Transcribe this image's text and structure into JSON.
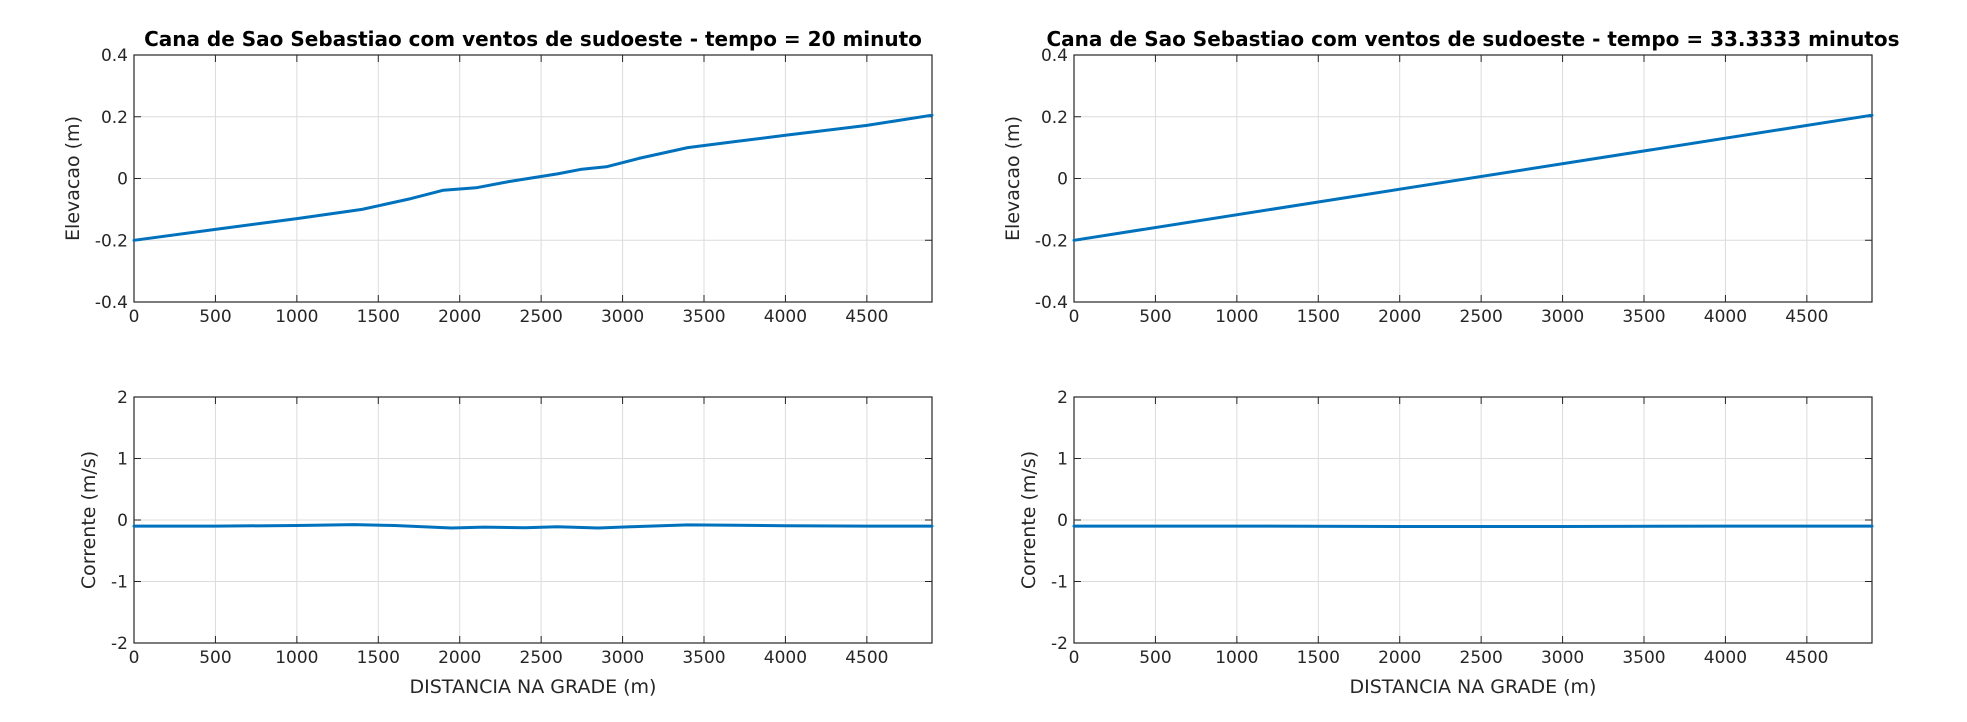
{
  "chart_data": [
    {
      "type": "line",
      "title": "Cana de Sao Sebastiao com ventos de sudoeste - tempo = 20 minuto",
      "xlabel": "",
      "ylabel": "Elevacao (m)",
      "xlim": [
        0,
        4900
      ],
      "ylim": [
        -0.4,
        0.4
      ],
      "xticks": [
        0,
        500,
        1000,
        1500,
        2000,
        2500,
        3000,
        3500,
        4000,
        4500
      ],
      "yticks": [
        -0.4,
        -0.2,
        0,
        0.2,
        0.4
      ],
      "xtick_labels": [
        "0",
        "500",
        "1000",
        "1500",
        "2000",
        "2500",
        "3000",
        "3500",
        "4000",
        "4500"
      ],
      "ytick_labels": [
        "-0.4",
        "-0.2",
        "0",
        "0.2",
        "0.4"
      ],
      "grid": true,
      "color": "#0072bd",
      "series": [
        {
          "x": [
            0,
            500,
            1000,
            1400,
            1700,
            1900,
            2100,
            2300,
            2600,
            2750,
            2900,
            3100,
            3400,
            3700,
            4000,
            4500,
            4900
          ],
          "y": [
            -0.2,
            -0.165,
            -0.13,
            -0.1,
            -0.065,
            -0.038,
            -0.03,
            -0.01,
            0.015,
            0.03,
            0.038,
            0.065,
            0.1,
            0.12,
            0.14,
            0.172,
            0.205
          ]
        }
      ]
    },
    {
      "type": "line",
      "title": "Cana de Sao Sebastiao com ventos de sudoeste - tempo = 33.3333 minutos",
      "xlabel": "",
      "ylabel": "Elevacao (m)",
      "xlim": [
        0,
        4900
      ],
      "ylim": [
        -0.4,
        0.4
      ],
      "xticks": [
        0,
        500,
        1000,
        1500,
        2000,
        2500,
        3000,
        3500,
        4000,
        4500
      ],
      "yticks": [
        -0.4,
        -0.2,
        0,
        0.2,
        0.4
      ],
      "xtick_labels": [
        "0",
        "500",
        "1000",
        "1500",
        "2000",
        "2500",
        "3000",
        "3500",
        "4000",
        "4500"
      ],
      "ytick_labels": [
        "-0.4",
        "-0.2",
        "0",
        "0.2",
        "0.4"
      ],
      "grid": true,
      "color": "#0072bd",
      "series": [
        {
          "x": [
            0,
            4900
          ],
          "y": [
            -0.2,
            0.205
          ]
        }
      ]
    },
    {
      "type": "line",
      "title": "",
      "xlabel": "DISTANCIA NA GRADE (m)",
      "ylabel": "Corrente (m/s)",
      "xlim": [
        0,
        4900
      ],
      "ylim": [
        -2,
        2
      ],
      "xticks": [
        0,
        500,
        1000,
        1500,
        2000,
        2500,
        3000,
        3500,
        4000,
        4500
      ],
      "yticks": [
        -2,
        -1,
        0,
        1,
        2
      ],
      "xtick_labels": [
        "0",
        "500",
        "1000",
        "1500",
        "2000",
        "2500",
        "3000",
        "3500",
        "4000",
        "4500"
      ],
      "ytick_labels": [
        "-2",
        "-1",
        "0",
        "1",
        "2"
      ],
      "grid": true,
      "color": "#0072bd",
      "series": [
        {
          "x": [
            0,
            500,
            1000,
            1350,
            1600,
            1950,
            2150,
            2400,
            2600,
            2850,
            3050,
            3400,
            3700,
            4000,
            4500,
            4900
          ],
          "y": [
            -0.1,
            -0.1,
            -0.09,
            -0.075,
            -0.09,
            -0.13,
            -0.115,
            -0.125,
            -0.11,
            -0.13,
            -0.11,
            -0.08,
            -0.085,
            -0.095,
            -0.1,
            -0.1
          ]
        }
      ]
    },
    {
      "type": "line",
      "title": "",
      "xlabel": "DISTANCIA NA GRADE (m)",
      "ylabel": "Corrente (m/s)",
      "xlim": [
        0,
        4900
      ],
      "ylim": [
        -2,
        2
      ],
      "xticks": [
        0,
        500,
        1000,
        1500,
        2000,
        2500,
        3000,
        3500,
        4000,
        4500
      ],
      "yticks": [
        -2,
        -1,
        0,
        1,
        2
      ],
      "xtick_labels": [
        "0",
        "500",
        "1000",
        "1500",
        "2000",
        "2500",
        "3000",
        "3500",
        "4000",
        "4500"
      ],
      "ytick_labels": [
        "-2",
        "-1",
        "0",
        "1",
        "2"
      ],
      "grid": true,
      "color": "#0072bd",
      "series": [
        {
          "x": [
            0,
            1000,
            2000,
            3000,
            4000,
            4900
          ],
          "y": [
            -0.1,
            -0.1,
            -0.105,
            -0.105,
            -0.1,
            -0.1
          ]
        }
      ]
    }
  ]
}
